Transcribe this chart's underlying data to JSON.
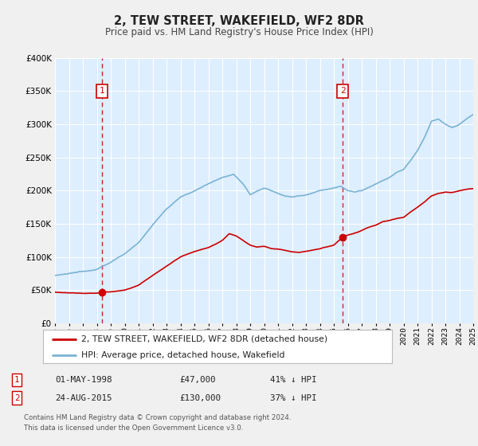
{
  "title": "2, TEW STREET, WAKEFIELD, WF2 8DR",
  "subtitle": "Price paid vs. HM Land Registry's House Price Index (HPI)",
  "fig_bg_color": "#f0f0f0",
  "plot_bg_color": "#ddeeff",
  "grid_color": "#ffffff",
  "red_color": "#cc0000",
  "blue_color": "#7ab3d4",
  "red_line_label": "2, TEW STREET, WAKEFIELD, WF2 8DR (detached house)",
  "blue_line_label": "HPI: Average price, detached house, Wakefield",
  "sale1_date": "01-MAY-1998",
  "sale1_price": "£47,000",
  "sale1_hpi": "41% ↓ HPI",
  "sale1_year": 1998.37,
  "sale1_value": 47000,
  "sale2_date": "24-AUG-2015",
  "sale2_price": "£130,000",
  "sale2_hpi": "37% ↓ HPI",
  "sale2_year": 2015.64,
  "sale2_value": 130000,
  "footer": "Contains HM Land Registry data © Crown copyright and database right 2024.\nThis data is licensed under the Open Government Licence v3.0.",
  "ylim": [
    0,
    400000
  ],
  "xlim_start": 1995,
  "xlim_end": 2025
}
